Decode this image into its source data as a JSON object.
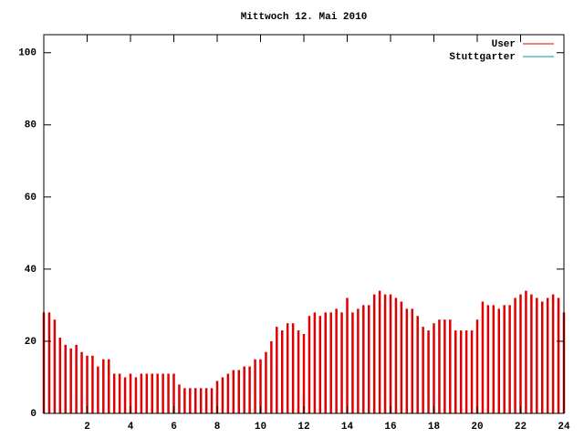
{
  "chart_data": {
    "type": "impulse",
    "title": "Mittwoch 12. Mai 2010",
    "x": [
      0,
      0.25,
      0.5,
      0.75,
      1,
      1.25,
      1.5,
      1.75,
      2,
      2.25,
      2.5,
      2.75,
      3,
      3.25,
      3.5,
      3.75,
      4,
      4.25,
      4.5,
      4.75,
      5,
      5.25,
      5.5,
      5.75,
      6,
      6.25,
      6.5,
      6.75,
      7,
      7.25,
      7.5,
      7.75,
      8,
      8.25,
      8.5,
      8.75,
      9,
      9.25,
      9.5,
      9.75,
      10,
      10.25,
      10.5,
      10.75,
      11,
      11.25,
      11.5,
      11.75,
      12,
      12.25,
      12.5,
      12.75,
      13,
      13.25,
      13.5,
      13.75,
      14,
      14.25,
      14.5,
      14.75,
      15,
      15.25,
      15.5,
      15.75,
      16,
      16.25,
      16.5,
      16.75,
      17,
      17.25,
      17.5,
      17.75,
      18,
      18.25,
      18.5,
      18.75,
      19,
      19.25,
      19.5,
      19.75,
      20,
      20.25,
      20.5,
      20.75,
      21,
      21.25,
      21.5,
      21.75,
      22,
      22.25,
      22.5,
      22.75,
      23,
      23.25,
      23.5,
      23.75,
      24
    ],
    "series": [
      {
        "name": "User",
        "color": "#e00000",
        "values": [
          28,
          28,
          26,
          21,
          19,
          18,
          19,
          17,
          16,
          16,
          13,
          15,
          15,
          11,
          11,
          10,
          11,
          10,
          11,
          11,
          11,
          11,
          11,
          11,
          11,
          8,
          7,
          7,
          7,
          7,
          7,
          7,
          9,
          10,
          11,
          12,
          12,
          13,
          13,
          15,
          15,
          17,
          20,
          24,
          23,
          25,
          25,
          23,
          22,
          27,
          28,
          27,
          28,
          28,
          29,
          28,
          32,
          28,
          29,
          30,
          30,
          33,
          34,
          33,
          33,
          32,
          31,
          29,
          29,
          27,
          24,
          23,
          25,
          26,
          26,
          26,
          23,
          23,
          23,
          23,
          26,
          31,
          30,
          30,
          29,
          30,
          30,
          32,
          33,
          34,
          33,
          32,
          31,
          32,
          33,
          32,
          28
        ]
      },
      {
        "name": "Stuttgarter",
        "color": "#009999",
        "values": [
          null,
          null,
          null,
          null,
          null,
          null,
          null,
          null,
          null,
          null,
          null,
          null,
          null,
          null,
          null,
          null,
          null,
          null,
          null,
          null,
          null,
          null,
          null,
          null,
          null,
          null,
          null,
          null,
          null,
          null,
          null,
          null,
          null,
          null,
          null,
          null,
          null,
          null,
          null,
          null,
          null,
          null,
          null,
          null,
          null,
          null,
          null,
          null,
          null,
          null,
          null,
          null,
          null,
          null,
          null,
          null,
          null,
          null,
          null,
          null,
          null,
          null,
          null,
          null,
          null,
          null,
          null,
          null,
          null,
          null,
          null,
          null,
          null,
          null,
          null,
          null,
          null,
          null,
          null,
          null,
          null,
          null,
          null,
          null,
          null,
          null,
          null,
          null,
          null,
          null,
          null,
          null,
          null,
          null,
          null,
          null,
          null
        ]
      }
    ],
    "xlim": [
      0,
      24
    ],
    "xticks": [
      2,
      4,
      6,
      8,
      10,
      12,
      14,
      16,
      18,
      20,
      22,
      24
    ],
    "ylim": [
      0,
      105
    ],
    "yticks": [
      0,
      20,
      40,
      60,
      80,
      100
    ],
    "legend": "top-right"
  }
}
